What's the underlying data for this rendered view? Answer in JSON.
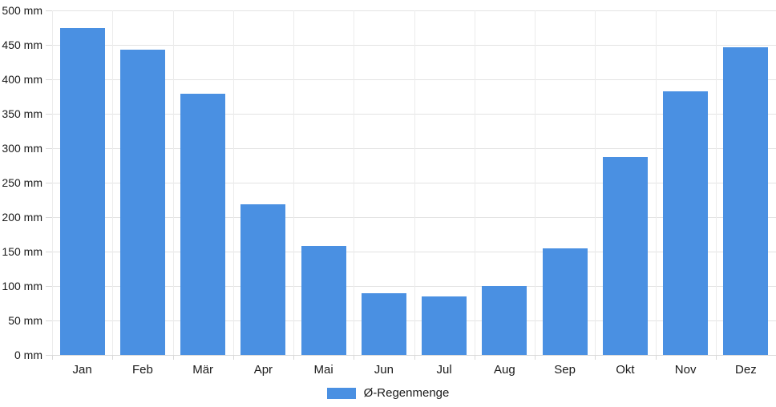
{
  "chart_data": {
    "type": "bar",
    "title": "",
    "xlabel": "",
    "ylabel": "",
    "categories": [
      "Jan",
      "Feb",
      "Mär",
      "Apr",
      "Mai",
      "Jun",
      "Jul",
      "Aug",
      "Sep",
      "Okt",
      "Nov",
      "Dez"
    ],
    "values": [
      474,
      443,
      379,
      219,
      158,
      89,
      85,
      100,
      155,
      287,
      383,
      446
    ],
    "unit": "mm",
    "ylim": [
      0,
      500
    ],
    "ytick_step": 50,
    "ytick_suffix": " mm",
    "grid": true,
    "legend": {
      "label": "Ø-Regenmenge",
      "position": "bottom"
    },
    "colors": {
      "bar": "#4a90e2",
      "grid_h": "#e3e3e3",
      "grid_v": "#ececec",
      "axis": "#d9d9d9",
      "text": "#1a1a1a"
    }
  }
}
